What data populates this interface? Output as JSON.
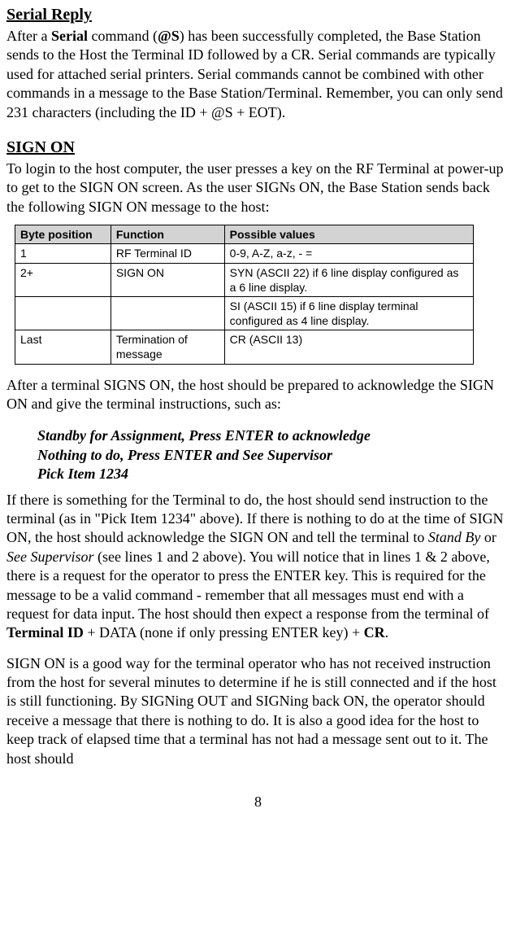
{
  "serial_reply": {
    "heading": "Serial Reply",
    "text_parts": {
      "p1a": "After a ",
      "p1b": "Serial",
      "p1c": " command (",
      "p1d": "@S",
      "p1e": ") has been successfully completed, the Base Station sends to the Host the Terminal ID followed by a CR. Serial commands are typically used for attached serial printers. Serial commands cannot be combined with other commands in a message to the Base Station/Terminal.  Remember, you can only send 231 characters (including the ID + @S + EOT)."
    }
  },
  "sign_on": {
    "heading": "SIGN ON",
    "intro": "To login to the host computer, the user presses a key on the RF Terminal at power-up to get to the SIGN ON screen. As the user SIGNs ON, the Base Station sends back the following SIGN ON message to the host:",
    "table": {
      "headers": [
        "Byte position",
        "Function",
        "Possible values"
      ],
      "rows": [
        [
          "1",
          "RF Terminal ID",
          "0-9, A-Z, a-z, - ="
        ],
        [
          "2+",
          "SIGN ON",
          "SYN (ASCII 22) if 6 line display configured as a 6 line display."
        ],
        [
          "",
          "",
          "SI (ASCII 15) if 6 line display terminal configured as 4 line display."
        ],
        [
          "Last",
          "Termination of message",
          "CR (ASCII 13)"
        ]
      ]
    },
    "after_table": "After a terminal SIGNS ON, the host should be prepared to acknowledge the SIGN ON and give the terminal instructions, such as:",
    "examples": [
      "Standby for Assignment, Press ENTER to acknowledge",
      "Nothing to do, Press ENTER and See Supervisor",
      "Pick Item 1234"
    ],
    "para3_parts": {
      "a": "If there is something for the Terminal to do, the host should send instruction to the terminal (as in \"Pick Item 1234\" above).  If there is nothing to do at the time of SIGN ON, the host should acknowledge the SIGN ON and tell the terminal to ",
      "b": "Stand By",
      "c": " or ",
      "d": "See Supervisor",
      "e": " (see lines 1 and 2 above). You will notice that in lines 1 & 2 above, there is a request for the operator to press the ENTER key. This is required for the message to be a valid command - remember that all messages must end with a request for data input. The host should then expect a response from the terminal of ",
      "f": "Terminal ID",
      "g": " + DATA (none if only pressing ENTER key) + ",
      "h": "CR",
      "i": "."
    },
    "para4": "SIGN ON is a good way for the terminal operator who has not received instruction from the host for several minutes to determine if he is still connected and if the host is still functioning. By SIGNing OUT and SIGNing back ON, the operator should receive a message that there is nothing to do. It is also a good idea for the host to keep track of elapsed time that a terminal has not had a message sent out to it. The host should"
  },
  "page_number": "8"
}
